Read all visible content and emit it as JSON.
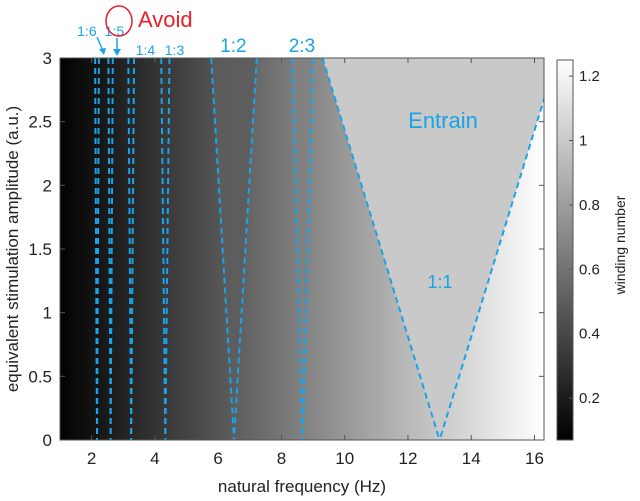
{
  "chart_data": {
    "type": "heatmap",
    "title": "",
    "xlabel": "natural frequency (Hz)",
    "ylabel": "equivalent stimulation amplitude (a.u.)",
    "xlim": [
      1,
      16.3
    ],
    "ylim": [
      0,
      3
    ],
    "x_ticks": [
      2,
      4,
      6,
      8,
      10,
      12,
      14,
      16
    ],
    "y_ticks": [
      0,
      0.5,
      1,
      1.5,
      2,
      2.5,
      3
    ],
    "x_tick_labels": [
      "2",
      "4",
      "6",
      "8",
      "10",
      "12",
      "14",
      "16"
    ],
    "y_tick_labels": [
      "0",
      "0.5",
      "1",
      "1.5",
      "2",
      "2.5",
      "3"
    ],
    "colormap": "gray",
    "stimulation_frequency_hz": 13,
    "colorbar": {
      "label": "winding number",
      "range": [
        0.07,
        1.25
      ],
      "ticks": [
        0.2,
        0.4,
        0.6,
        0.8,
        1,
        1.2
      ],
      "tick_labels": [
        "0.2",
        "0.4",
        "0.6",
        "0.8",
        "1",
        "1.2"
      ]
    },
    "boundary_color": "#1aa3e8",
    "tongues": [
      {
        "name": "1:6",
        "center": 2.17,
        "half_width_at_top": 0.06
      },
      {
        "name": "1:5",
        "center": 2.6,
        "half_width_at_top": 0.07
      },
      {
        "name": "1:4",
        "center": 3.25,
        "half_width_at_top": 0.09
      },
      {
        "name": "1:3",
        "center": 4.33,
        "half_width_at_top": 0.13
      },
      {
        "name": "1:2",
        "center": 6.5,
        "half_width_at_top": 0.72
      },
      {
        "name": "2:3",
        "center": 8.67,
        "half_width_at_top": 0.33
      },
      {
        "name": "1:1",
        "center": 13.0,
        "half_width_at_top": 3.7
      }
    ],
    "annotations": {
      "top_labels": [
        {
          "text": "1:6",
          "x": 1.85
        },
        {
          "text": "1:5",
          "x": 2.72
        },
        {
          "text": "1:4",
          "x": 3.7
        },
        {
          "text": "1:3",
          "x": 4.62
        },
        {
          "text": "1:2",
          "x": 6.48
        },
        {
          "text": "2:3",
          "x": 8.65
        }
      ],
      "avoid": "Avoid",
      "entrain": "Entrain",
      "one_to_one": "1:1"
    },
    "colors": {
      "avoid": "#e8202a",
      "label": "#1aa3e8"
    }
  }
}
